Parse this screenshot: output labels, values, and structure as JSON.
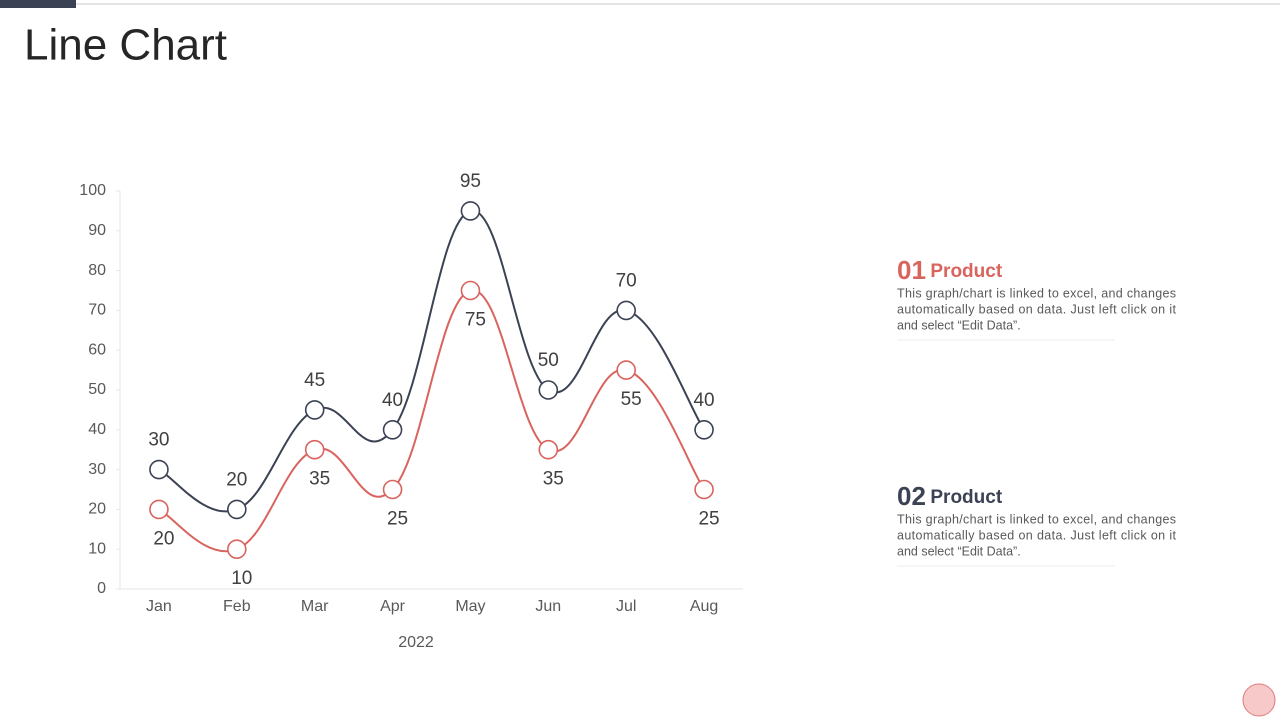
{
  "chart_data": {
    "type": "line",
    "title": "Line Chart",
    "x_label": "2022",
    "categories": [
      "Jan",
      "Feb",
      "Mar",
      "Apr",
      "May",
      "Jun",
      "Jul",
      "Aug"
    ],
    "series": [
      {
        "name": "Product",
        "number": "01",
        "color": "#d9645e",
        "values": [
          20,
          10,
          35,
          25,
          75,
          35,
          55,
          25
        ],
        "description": [
          "This graph/chart is linked to excel, and changes",
          "automatically based on data. Just left click on it",
          "and select “Edit Data”."
        ]
      },
      {
        "name": "Product",
        "number": "02",
        "color": "#3b4254",
        "values": [
          30,
          20,
          45,
          40,
          95,
          50,
          70,
          40
        ],
        "description": [
          "This graph/chart is linked to excel, and changes",
          "automatically based on data. Just left click on it",
          "and select “Edit Data”."
        ]
      }
    ],
    "ylim": [
      0,
      100
    ],
    "yticks": [
      0,
      10,
      20,
      30,
      40,
      50,
      60,
      70,
      80,
      90,
      100
    ],
    "grid": false
  }
}
